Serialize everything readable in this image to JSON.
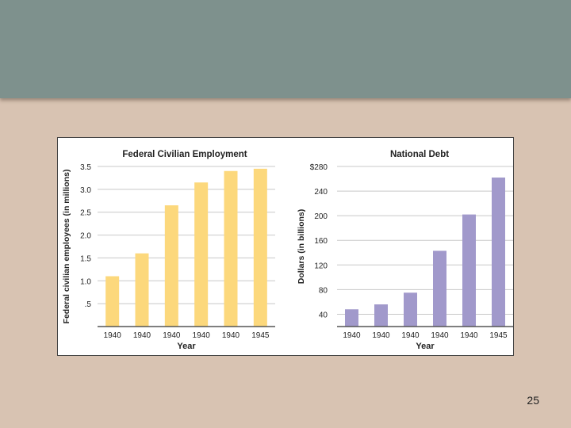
{
  "slide": {
    "page_number": "25",
    "colors": {
      "background": "#d8c3b2",
      "header_band": "#7e918d",
      "panel": "#ffffff"
    }
  },
  "chart_data": [
    {
      "type": "bar",
      "title": "Federal Civilian Employment",
      "xlabel": "Year",
      "ylabel": "Federal civilian employees (in millions)",
      "categories": [
        "1940",
        "1940",
        "1940",
        "1940",
        "1940",
        "1945"
      ],
      "values": [
        1.1,
        1.6,
        2.65,
        3.15,
        3.4,
        3.45
      ],
      "ylim": [
        0,
        3.5
      ],
      "yticks": [
        {
          "value": 0.5,
          "label": ".5"
        },
        {
          "value": 1.0,
          "label": "1.0"
        },
        {
          "value": 1.5,
          "label": "1.5"
        },
        {
          "value": 2.0,
          "label": "2.0"
        },
        {
          "value": 2.5,
          "label": "2.5"
        },
        {
          "value": 3.0,
          "label": "3.0"
        },
        {
          "value": 3.5,
          "label": "3.5"
        }
      ],
      "grid": true,
      "color": "#fcd87c"
    },
    {
      "type": "bar",
      "title": "National Debt",
      "xlabel": "Year",
      "ylabel": "Dollars (in billions)",
      "categories": [
        "1940",
        "1940",
        "1940",
        "1940",
        "1940",
        "1945"
      ],
      "values": [
        48,
        56,
        75,
        143,
        202,
        262
      ],
      "ylim": [
        20,
        280
      ],
      "yticks": [
        {
          "value": 40,
          "label": "40"
        },
        {
          "value": 80,
          "label": "80"
        },
        {
          "value": 120,
          "label": "120"
        },
        {
          "value": 160,
          "label": "160"
        },
        {
          "value": 200,
          "label": "200"
        },
        {
          "value": 240,
          "label": "240"
        },
        {
          "value": 280,
          "label": "$280"
        }
      ],
      "grid": true,
      "color": "#a199cb"
    }
  ]
}
